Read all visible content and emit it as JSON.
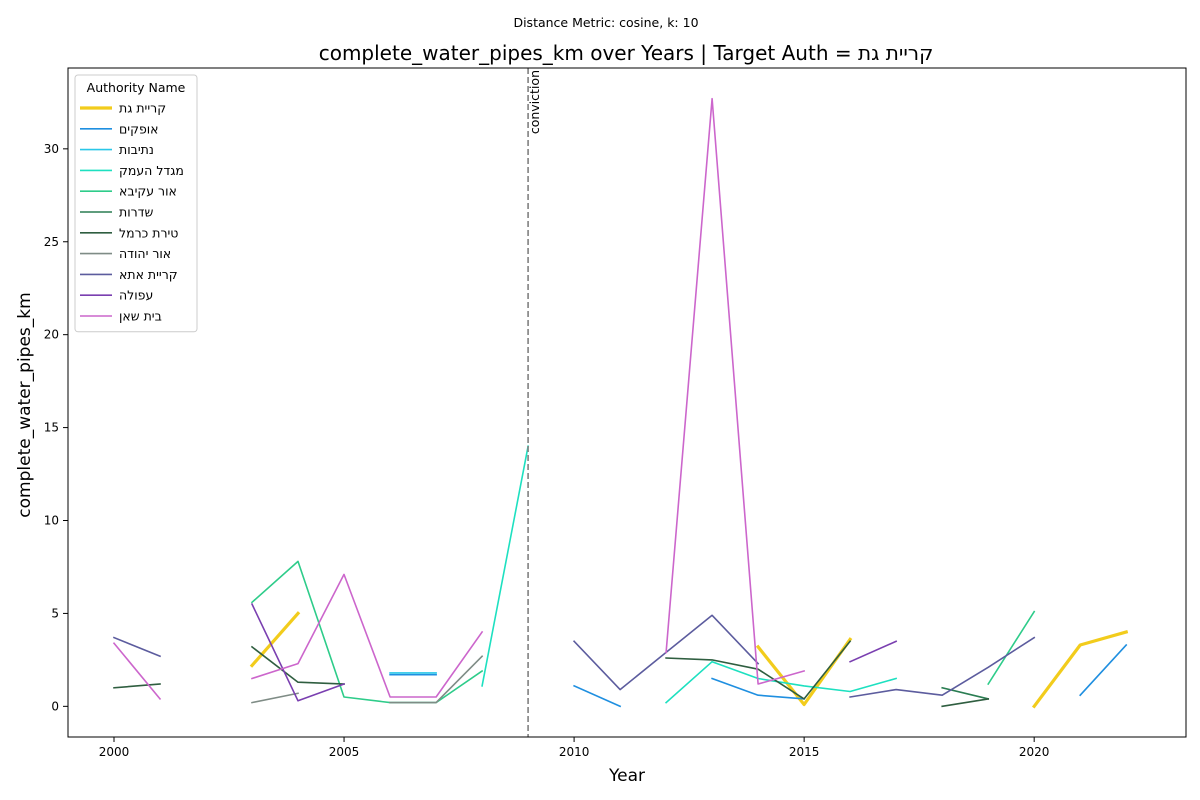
{
  "suptitle": "Distance Metric: cosine, k: 10",
  "chart_data": {
    "type": "line",
    "title": "complete_water_pipes_km over Years | Target Auth = קריית גת",
    "xlabel": "Year",
    "ylabel": "complete_water_pipes_km",
    "xlim": [
      1999,
      2023.3
    ],
    "ylim": [
      -1.65,
      34.35
    ],
    "xticks": [
      2000,
      2005,
      2010,
      2015,
      2020
    ],
    "yticks": [
      0,
      5,
      10,
      15,
      20,
      25,
      30
    ],
    "grid": false,
    "legend": {
      "title": "Authority Name",
      "placement": "upper-left"
    },
    "annotations": [
      {
        "type": "vline",
        "x": 2009,
        "label": "conviction",
        "style": "dashed",
        "color": "#808080"
      }
    ],
    "series": [
      {
        "name": "קריית גת",
        "color": "#f2cc1c",
        "width": 3.2,
        "x": [
          2000,
          2001,
          2002,
          2003,
          2004,
          2005,
          2006,
          2007,
          2008,
          2009,
          2010,
          2011,
          2012,
          2013,
          2014,
          2015,
          2016,
          2017,
          2018,
          2019,
          2020,
          2021,
          2022
        ],
        "y": [
          null,
          null,
          null,
          2.2,
          5.0,
          null,
          null,
          null,
          null,
          null,
          null,
          null,
          null,
          null,
          3.2,
          0.1,
          3.6,
          null,
          null,
          null,
          0.0,
          3.3,
          4.0
        ]
      },
      {
        "name": "אופקים",
        "color": "#1f8fe0",
        "width": 1.6,
        "x": [
          2000,
          2001,
          2002,
          2003,
          2004,
          2005,
          2006,
          2007,
          2008,
          2009,
          2010,
          2011,
          2012,
          2013,
          2014,
          2015,
          2016,
          2017,
          2018,
          2019,
          2020,
          2021,
          2022
        ],
        "y": [
          null,
          null,
          null,
          null,
          null,
          null,
          1.7,
          1.7,
          null,
          null,
          1.1,
          0.0,
          null,
          1.5,
          0.6,
          0.4,
          null,
          null,
          null,
          null,
          null,
          0.6,
          3.3
        ]
      },
      {
        "name": "נתיבות",
        "color": "#2ac7e8",
        "width": 1.6,
        "x": [
          2000,
          2001,
          2002,
          2003,
          2004,
          2005,
          2006,
          2007,
          2008,
          2009,
          2010,
          2011,
          2012,
          2013,
          2014,
          2015,
          2016,
          2017,
          2018,
          2019,
          2020,
          2021,
          2022
        ],
        "y": [
          null,
          null,
          null,
          null,
          null,
          null,
          1.8,
          1.8,
          null,
          null,
          null,
          null,
          null,
          null,
          null,
          null,
          null,
          null,
          null,
          null,
          null,
          null,
          null
        ]
      },
      {
        "name": "מגדל העמק",
        "color": "#1de0c0",
        "width": 1.6,
        "x": [
          2000,
          2001,
          2002,
          2003,
          2004,
          2005,
          2006,
          2007,
          2008,
          2009,
          2010,
          2011,
          2012,
          2013,
          2014,
          2015,
          2016,
          2017,
          2018,
          2019,
          2020,
          2021,
          2022
        ],
        "y": [
          null,
          null,
          null,
          null,
          null,
          null,
          null,
          null,
          1.1,
          14.0,
          null,
          null,
          0.2,
          2.4,
          1.5,
          1.1,
          0.8,
          1.5,
          null,
          null,
          null,
          null,
          null
        ]
      },
      {
        "name": "אור עקיבא",
        "color": "#2ecc8a",
        "width": 1.6,
        "x": [
          2000,
          2001,
          2002,
          2003,
          2004,
          2005,
          2006,
          2007,
          2008,
          2009,
          2010,
          2011,
          2012,
          2013,
          2014,
          2015,
          2016,
          2017,
          2018,
          2019,
          2020,
          2021,
          2022
        ],
        "y": [
          null,
          null,
          null,
          5.6,
          7.8,
          0.5,
          0.2,
          0.2,
          1.9,
          null,
          null,
          null,
          null,
          null,
          null,
          null,
          null,
          null,
          null,
          1.2,
          5.1,
          null,
          null
        ]
      },
      {
        "name": "שדרות",
        "color": "#2a7d52",
        "width": 1.6,
        "x": [
          2000,
          2001,
          2002,
          2003,
          2004,
          2005,
          2006,
          2007,
          2008,
          2009,
          2010,
          2011,
          2012,
          2013,
          2014,
          2015,
          2016,
          2017,
          2018,
          2019,
          2020,
          2021,
          2022
        ],
        "y": [
          null,
          null,
          null,
          null,
          null,
          null,
          null,
          null,
          null,
          null,
          null,
          null,
          null,
          null,
          null,
          null,
          null,
          null,
          1.0,
          0.4,
          null,
          null,
          null
        ]
      },
      {
        "name": "טירת כרמל",
        "color": "#2f5e40",
        "width": 1.6,
        "x": [
          2000,
          2001,
          2002,
          2003,
          2004,
          2005,
          2006,
          2007,
          2008,
          2009,
          2010,
          2011,
          2012,
          2013,
          2014,
          2015,
          2016,
          2017,
          2018,
          2019,
          2020,
          2021,
          2022
        ],
        "y": [
          1.0,
          1.2,
          null,
          3.2,
          1.3,
          1.2,
          null,
          null,
          null,
          null,
          null,
          null,
          2.6,
          2.5,
          2.0,
          0.4,
          3.5,
          null,
          0.0,
          0.4,
          null,
          null,
          null
        ]
      },
      {
        "name": "אור יהודה",
        "color": "#7f8c86",
        "width": 1.6,
        "x": [
          2000,
          2001,
          2002,
          2003,
          2004,
          2005,
          2006,
          2007,
          2008,
          2009,
          2010,
          2011,
          2012,
          2013,
          2014,
          2015,
          2016,
          2017,
          2018,
          2019,
          2020,
          2021,
          2022
        ],
        "y": [
          null,
          null,
          null,
          0.2,
          0.7,
          null,
          0.2,
          0.2,
          2.7,
          null,
          null,
          null,
          null,
          null,
          null,
          null,
          null,
          null,
          null,
          null,
          null,
          null,
          null
        ]
      },
      {
        "name": "קריית אתא",
        "color": "#5c5c9e",
        "width": 1.6,
        "x": [
          2000,
          2001,
          2002,
          2003,
          2004,
          2005,
          2006,
          2007,
          2008,
          2009,
          2010,
          2011,
          2012,
          2013,
          2014,
          2015,
          2016,
          2017,
          2018,
          2019,
          2020,
          2021,
          2022
        ],
        "y": [
          3.7,
          2.7,
          null,
          null,
          null,
          null,
          null,
          null,
          null,
          null,
          3.5,
          0.9,
          2.9,
          4.9,
          2.3,
          null,
          0.5,
          0.9,
          0.6,
          2.1,
          3.7,
          null,
          null
        ]
      },
      {
        "name": "עפולה",
        "color": "#7a3fb0",
        "width": 1.6,
        "x": [
          2000,
          2001,
          2002,
          2003,
          2004,
          2005,
          2006,
          2007,
          2008,
          2009,
          2010,
          2011,
          2012,
          2013,
          2014,
          2015,
          2016,
          2017,
          2018,
          2019,
          2020,
          2021,
          2022
        ],
        "y": [
          null,
          null,
          null,
          5.5,
          0.3,
          1.2,
          null,
          null,
          null,
          null,
          null,
          null,
          null,
          null,
          null,
          null,
          2.4,
          3.5,
          null,
          null,
          null,
          null,
          null
        ]
      },
      {
        "name": "בית שאן",
        "color": "#cc66cc",
        "width": 1.6,
        "x": [
          2000,
          2001,
          2002,
          2003,
          2004,
          2005,
          2006,
          2007,
          2008,
          2009,
          2010,
          2011,
          2012,
          2013,
          2014,
          2015,
          2016,
          2017,
          2018,
          2019,
          2020,
          2021,
          2022
        ],
        "y": [
          3.4,
          0.4,
          null,
          1.5,
          2.3,
          7.1,
          0.5,
          0.5,
          4.0,
          null,
          null,
          null,
          2.9,
          32.7,
          1.2,
          1.9,
          null,
          null,
          null,
          null,
          null,
          null,
          null
        ]
      }
    ]
  }
}
